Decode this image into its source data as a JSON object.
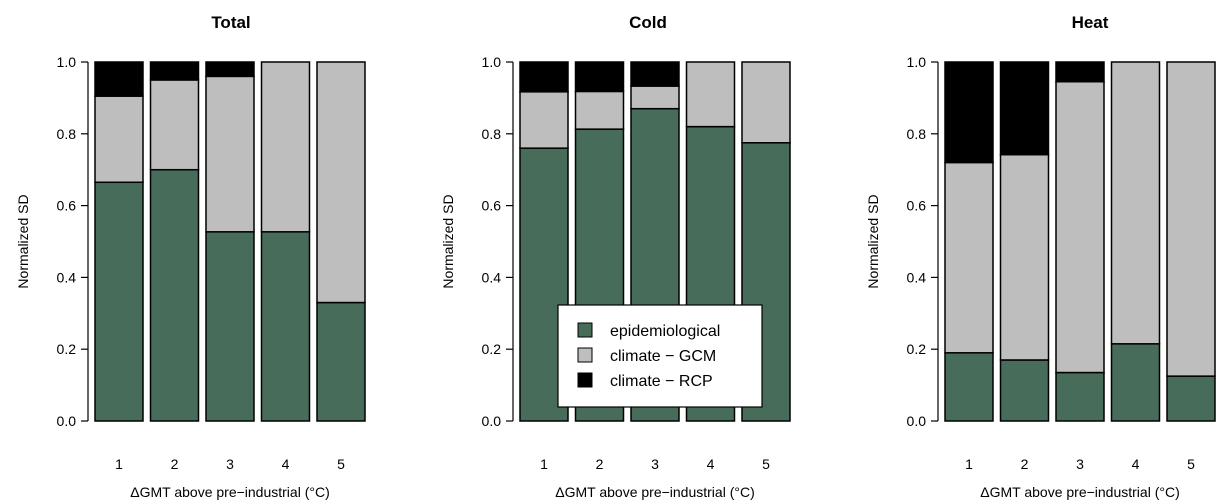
{
  "chart_data": [
    {
      "type": "bar",
      "stacked": true,
      "title": "Total",
      "xlabel": "ΔGMT above pre−industrial (°C)",
      "ylabel": "Normalized SD",
      "categories": [
        "1",
        "2",
        "3",
        "4",
        "5"
      ],
      "ylim": [
        0,
        1
      ],
      "yticks": [
        "0.0",
        "0.2",
        "0.4",
        "0.6",
        "0.8",
        "1.0"
      ],
      "series": [
        {
          "name": "epidemiological",
          "values": [
            0.665,
            0.7,
            0.527,
            0.527,
            0.33
          ]
        },
        {
          "name": "climate − GCM",
          "values": [
            0.24,
            0.25,
            0.433,
            0.473,
            0.67
          ]
        },
        {
          "name": "climate − RCP",
          "values": [
            0.095,
            0.05,
            0.04,
            0.0,
            0.0
          ]
        }
      ]
    },
    {
      "type": "bar",
      "stacked": true,
      "title": "Cold",
      "xlabel": "ΔGMT above pre−industrial (°C)",
      "ylabel": "Normalized SD",
      "categories": [
        "1",
        "2",
        "3",
        "4",
        "5"
      ],
      "ylim": [
        0,
        1
      ],
      "yticks": [
        "0.0",
        "0.2",
        "0.4",
        "0.6",
        "0.8",
        "1.0"
      ],
      "legend_position": "bottom-center",
      "series": [
        {
          "name": "epidemiological",
          "values": [
            0.76,
            0.813,
            0.87,
            0.82,
            0.775
          ]
        },
        {
          "name": "climate − GCM",
          "values": [
            0.157,
            0.105,
            0.063,
            0.18,
            0.225
          ]
        },
        {
          "name": "climate − RCP",
          "values": [
            0.083,
            0.082,
            0.067,
            0.0,
            0.0
          ]
        }
      ]
    },
    {
      "type": "bar",
      "stacked": true,
      "title": "Heat",
      "xlabel": "ΔGMT above pre−industrial (°C)",
      "ylabel": "Normalized SD",
      "categories": [
        "1",
        "2",
        "3",
        "4",
        "5"
      ],
      "ylim": [
        0,
        1
      ],
      "yticks": [
        "0.0",
        "0.2",
        "0.4",
        "0.6",
        "0.8",
        "1.0"
      ],
      "series": [
        {
          "name": "epidemiological",
          "values": [
            0.19,
            0.17,
            0.135,
            0.215,
            0.125
          ]
        },
        {
          "name": "climate − GCM",
          "values": [
            0.53,
            0.572,
            0.81,
            0.785,
            0.875
          ]
        },
        {
          "name": "climate − RCP",
          "values": [
            0.28,
            0.258,
            0.055,
            0.0,
            0.0
          ]
        }
      ]
    }
  ],
  "legend": {
    "items": [
      {
        "label": "epidemiological",
        "color": "#476c5a"
      },
      {
        "label": "climate − GCM",
        "color": "#bebebe"
      },
      {
        "label": "climate − RCP",
        "color": "#000000"
      }
    ]
  },
  "colors": {
    "epidemiological": "#476c5a",
    "climate_gcm": "#bebebe",
    "climate_rcp": "#000000"
  }
}
